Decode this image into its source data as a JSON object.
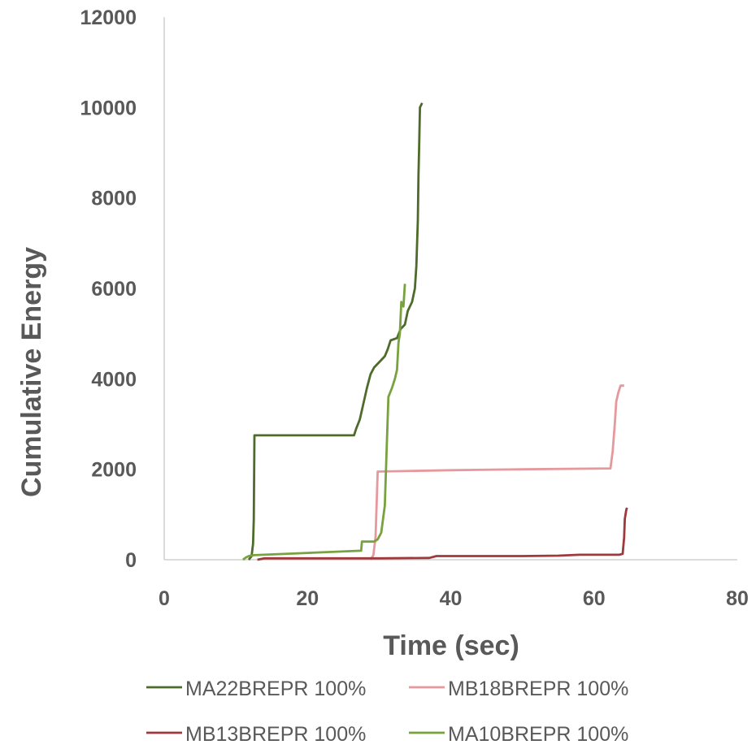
{
  "chart_data": {
    "type": "line",
    "title": "",
    "xlabel": "Time (sec)",
    "ylabel": "Cumulative Energy",
    "xlim": [
      0,
      80
    ],
    "ylim": [
      0,
      12000
    ],
    "xticks": [
      0,
      20,
      40,
      60,
      80
    ],
    "yticks": [
      0,
      2000,
      4000,
      6000,
      8000,
      10000,
      12000
    ],
    "x_tick_labels": [
      "0",
      "20",
      "40",
      "60",
      "80"
    ],
    "y_tick_labels": [
      "0",
      "2000",
      "4000",
      "6000",
      "8000",
      "10000",
      "12000"
    ],
    "grid": false,
    "legend_position": "bottom",
    "series": [
      {
        "name": "MA22BREPR 100%",
        "color": "#4e6b2b",
        "points": [
          [
            11.8,
            0
          ],
          [
            12.2,
            80
          ],
          [
            12.4,
            350
          ],
          [
            12.5,
            900
          ],
          [
            12.6,
            2750
          ],
          [
            26.5,
            2750
          ],
          [
            26.8,
            2900
          ],
          [
            27.3,
            3100
          ],
          [
            27.8,
            3450
          ],
          [
            28.3,
            3800
          ],
          [
            28.8,
            4100
          ],
          [
            29.3,
            4250
          ],
          [
            30.2,
            4400
          ],
          [
            30.8,
            4500
          ],
          [
            31.2,
            4650
          ],
          [
            31.6,
            4850
          ],
          [
            32.5,
            4900
          ],
          [
            33.0,
            5100
          ],
          [
            33.6,
            5200
          ],
          [
            34.0,
            5500
          ],
          [
            34.6,
            5700
          ],
          [
            35.0,
            6000
          ],
          [
            35.2,
            6500
          ],
          [
            35.4,
            7500
          ],
          [
            35.5,
            8500
          ],
          [
            35.6,
            9200
          ],
          [
            35.7,
            10000
          ],
          [
            36.0,
            10100
          ]
        ]
      },
      {
        "name": "MB18BREPR 100%",
        "color": "#e6999c",
        "points": [
          [
            28.8,
            0
          ],
          [
            29.2,
            100
          ],
          [
            29.5,
            500
          ],
          [
            29.8,
            1950
          ],
          [
            40.0,
            1980
          ],
          [
            50.0,
            2000
          ],
          [
            62.3,
            2020
          ],
          [
            62.6,
            2400
          ],
          [
            62.9,
            3000
          ],
          [
            63.1,
            3500
          ],
          [
            63.4,
            3700
          ],
          [
            63.7,
            3850
          ],
          [
            64.2,
            3850
          ]
        ]
      },
      {
        "name": "MB13BREPR 100%",
        "color": "#9e3a3b",
        "points": [
          [
            13.0,
            0
          ],
          [
            14.0,
            30
          ],
          [
            30.0,
            30
          ],
          [
            37.0,
            40
          ],
          [
            38.0,
            80
          ],
          [
            50.0,
            80
          ],
          [
            55.0,
            90
          ],
          [
            58.0,
            110
          ],
          [
            63.5,
            110
          ],
          [
            64.0,
            130
          ],
          [
            64.2,
            500
          ],
          [
            64.3,
            900
          ],
          [
            64.5,
            1100
          ],
          [
            64.6,
            1150
          ]
        ]
      },
      {
        "name": "MA10BREPR 100%",
        "color": "#77a23f",
        "points": [
          [
            11.0,
            0
          ],
          [
            11.4,
            50
          ],
          [
            11.8,
            80
          ],
          [
            12.5,
            100
          ],
          [
            27.5,
            200
          ],
          [
            27.6,
            400
          ],
          [
            29.3,
            400
          ],
          [
            29.8,
            450
          ],
          [
            30.3,
            600
          ],
          [
            30.8,
            1200
          ],
          [
            31.0,
            2200
          ],
          [
            31.3,
            3600
          ],
          [
            31.8,
            3800
          ],
          [
            32.2,
            4000
          ],
          [
            32.5,
            4200
          ],
          [
            32.7,
            4800
          ],
          [
            32.9,
            5000
          ],
          [
            33.1,
            5700
          ],
          [
            33.4,
            5600
          ],
          [
            33.6,
            6100
          ]
        ]
      }
    ]
  }
}
